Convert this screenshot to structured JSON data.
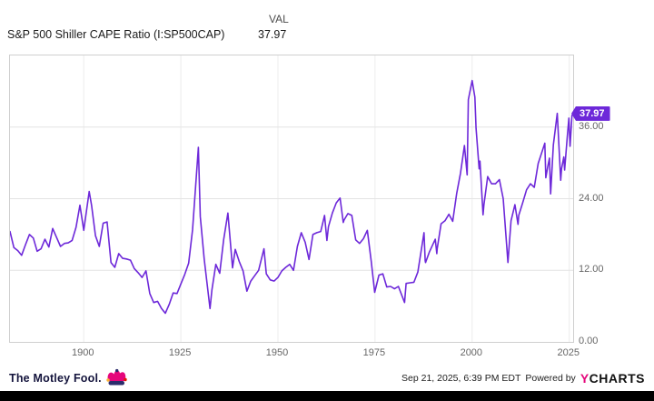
{
  "header": {
    "col_label": "VAL",
    "title": "S&P 500 Shiller CAPE Ratio (I:SP500CAP)",
    "value": "37.97"
  },
  "chart_data": {
    "type": "line",
    "title": "S&P 500 Shiller CAPE Ratio (I:SP500CAP)",
    "series_name": "S&P 500 Shiller CAPE Ratio",
    "legend_position": "none",
    "grid": true,
    "line_color": "#6d28d9",
    "badge_color": "#6d28d9",
    "last_value": 37.97,
    "last_value_label": "37.97",
    "xlim": [
      1881,
      2026
    ],
    "ylim": [
      0,
      48
    ],
    "x_ticks": [
      1900,
      1925,
      1950,
      1975,
      2000,
      2025
    ],
    "x_tick_labels": [
      "1900",
      "1925",
      "1950",
      "1975",
      "2000",
      "2025"
    ],
    "y_ticks": [
      36,
      24,
      12,
      0
    ],
    "y_tick_labels": [
      "36.00",
      "24.00",
      "12.00",
      "0.00"
    ],
    "points": [
      [
        1881,
        18.5
      ],
      [
        1882,
        15.8
      ],
      [
        1883,
        15.3
      ],
      [
        1884,
        14.5
      ],
      [
        1885,
        16.3
      ],
      [
        1886,
        18.0
      ],
      [
        1887,
        17.4
      ],
      [
        1888,
        15.2
      ],
      [
        1889,
        15.6
      ],
      [
        1890,
        17.2
      ],
      [
        1891,
        15.9
      ],
      [
        1892,
        19.0
      ],
      [
        1893,
        17.5
      ],
      [
        1894,
        16.0
      ],
      [
        1895,
        16.5
      ],
      [
        1896,
        16.6
      ],
      [
        1897,
        17.0
      ],
      [
        1898,
        19.2
      ],
      [
        1899,
        22.9
      ],
      [
        1900,
        18.7
      ],
      [
        1901.4,
        25.2
      ],
      [
        1902,
        22.9
      ],
      [
        1903,
        17.8
      ],
      [
        1904,
        16.0
      ],
      [
        1905,
        19.9
      ],
      [
        1906,
        20.1
      ],
      [
        1907,
        13.3
      ],
      [
        1908,
        12.5
      ],
      [
        1909,
        14.8
      ],
      [
        1910,
        14.0
      ],
      [
        1911,
        13.9
      ],
      [
        1912,
        13.7
      ],
      [
        1913,
        12.3
      ],
      [
        1914,
        11.6
      ],
      [
        1915,
        10.8
      ],
      [
        1916,
        11.9
      ],
      [
        1917,
        8.1
      ],
      [
        1918,
        6.6
      ],
      [
        1919,
        6.8
      ],
      [
        1920,
        5.6
      ],
      [
        1921,
        4.8
      ],
      [
        1922,
        6.3
      ],
      [
        1923,
        8.2
      ],
      [
        1924,
        8.1
      ],
      [
        1925,
        9.7
      ],
      [
        1926,
        11.3
      ],
      [
        1927,
        13.2
      ],
      [
        1928,
        18.8
      ],
      [
        1929.5,
        32.6
      ],
      [
        1930,
        21.0
      ],
      [
        1931,
        13.9
      ],
      [
        1932.5,
        5.6
      ],
      [
        1933,
        8.7
      ],
      [
        1934,
        13.0
      ],
      [
        1935,
        11.5
      ],
      [
        1936,
        17.1
      ],
      [
        1937.1,
        21.6
      ],
      [
        1938.3,
        12.4
      ],
      [
        1939,
        15.5
      ],
      [
        1940,
        13.5
      ],
      [
        1941,
        11.9
      ],
      [
        1942,
        8.5
      ],
      [
        1943,
        10.2
      ],
      [
        1944,
        11.1
      ],
      [
        1945,
        12.0
      ],
      [
        1946.4,
        15.6
      ],
      [
        1947,
        11.4
      ],
      [
        1948,
        10.4
      ],
      [
        1949,
        10.2
      ],
      [
        1950,
        10.8
      ],
      [
        1951,
        11.9
      ],
      [
        1952,
        12.5
      ],
      [
        1953,
        13.0
      ],
      [
        1954,
        12.0
      ],
      [
        1955,
        16.0
      ],
      [
        1956,
        18.3
      ],
      [
        1957,
        16.7
      ],
      [
        1958,
        13.8
      ],
      [
        1959,
        18.0
      ],
      [
        1960,
        18.3
      ],
      [
        1961,
        18.5
      ],
      [
        1962,
        21.2
      ],
      [
        1962.6,
        17.0
      ],
      [
        1963,
        19.3
      ],
      [
        1964,
        21.6
      ],
      [
        1965,
        23.3
      ],
      [
        1966,
        24.1
      ],
      [
        1966.8,
        20.0
      ],
      [
        1967,
        20.4
      ],
      [
        1968,
        21.5
      ],
      [
        1969,
        21.2
      ],
      [
        1970,
        17.1
      ],
      [
        1971,
        16.5
      ],
      [
        1972,
        17.3
      ],
      [
        1973,
        18.7
      ],
      [
        1974,
        13.5
      ],
      [
        1974.9,
        8.3
      ],
      [
        1976,
        11.2
      ],
      [
        1977,
        11.4
      ],
      [
        1978,
        9.2
      ],
      [
        1979,
        9.3
      ],
      [
        1980,
        8.9
      ],
      [
        1981,
        9.3
      ],
      [
        1982.6,
        6.6
      ],
      [
        1983,
        9.8
      ],
      [
        1984,
        9.9
      ],
      [
        1985,
        10.0
      ],
      [
        1986,
        11.7
      ],
      [
        1987.6,
        18.3
      ],
      [
        1987.9,
        13.6
      ],
      [
        1988,
        13.3
      ],
      [
        1989,
        15.1
      ],
      [
        1990.5,
        17.2
      ],
      [
        1990.9,
        14.8
      ],
      [
        1991,
        15.6
      ],
      [
        1992,
        19.8
      ],
      [
        1993,
        20.3
      ],
      [
        1994,
        21.4
      ],
      [
        1995,
        20.2
      ],
      [
        1996,
        24.8
      ],
      [
        1997,
        28.3
      ],
      [
        1998,
        32.9
      ],
      [
        1998.7,
        28.0
      ],
      [
        1999,
        40.6
      ],
      [
        2000,
        43.8
      ],
      [
        2000.7,
        41.0
      ],
      [
        2001,
        35.8
      ],
      [
        2001.8,
        29.0
      ],
      [
        2002,
        30.3
      ],
      [
        2002.8,
        21.3
      ],
      [
        2003,
        22.9
      ],
      [
        2004,
        27.7
      ],
      [
        2005,
        26.5
      ],
      [
        2006,
        26.5
      ],
      [
        2007,
        27.2
      ],
      [
        2008,
        24.0
      ],
      [
        2009.2,
        13.3
      ],
      [
        2010,
        20.3
      ],
      [
        2011,
        23.0
      ],
      [
        2011.8,
        19.7
      ],
      [
        2012,
        21.2
      ],
      [
        2013,
        23.3
      ],
      [
        2014,
        25.5
      ],
      [
        2015,
        26.5
      ],
      [
        2016,
        25.9
      ],
      [
        2017,
        29.9
      ],
      [
        2018.7,
        33.3
      ],
      [
        2018.95,
        27.5
      ],
      [
        2019.5,
        29.5
      ],
      [
        2019.9,
        30.8
      ],
      [
        2020.2,
        24.8
      ],
      [
        2020.9,
        33.0
      ],
      [
        2021.9,
        38.3
      ],
      [
        2022.8,
        27.1
      ],
      [
        2023,
        29.0
      ],
      [
        2023.6,
        31.0
      ],
      [
        2023.8,
        28.8
      ],
      [
        2024.5,
        34.5
      ],
      [
        2024.9,
        37.5
      ],
      [
        2025.2,
        32.8
      ],
      [
        2025.7,
        37.97
      ]
    ]
  },
  "footer": {
    "brand": "The Motley Fool.",
    "timestamp": "Sep 21, 2025, 6:39 PM EDT",
    "powered_by": "Powered by",
    "ycharts_y": "Y",
    "ycharts_rest": "CHARTS"
  }
}
